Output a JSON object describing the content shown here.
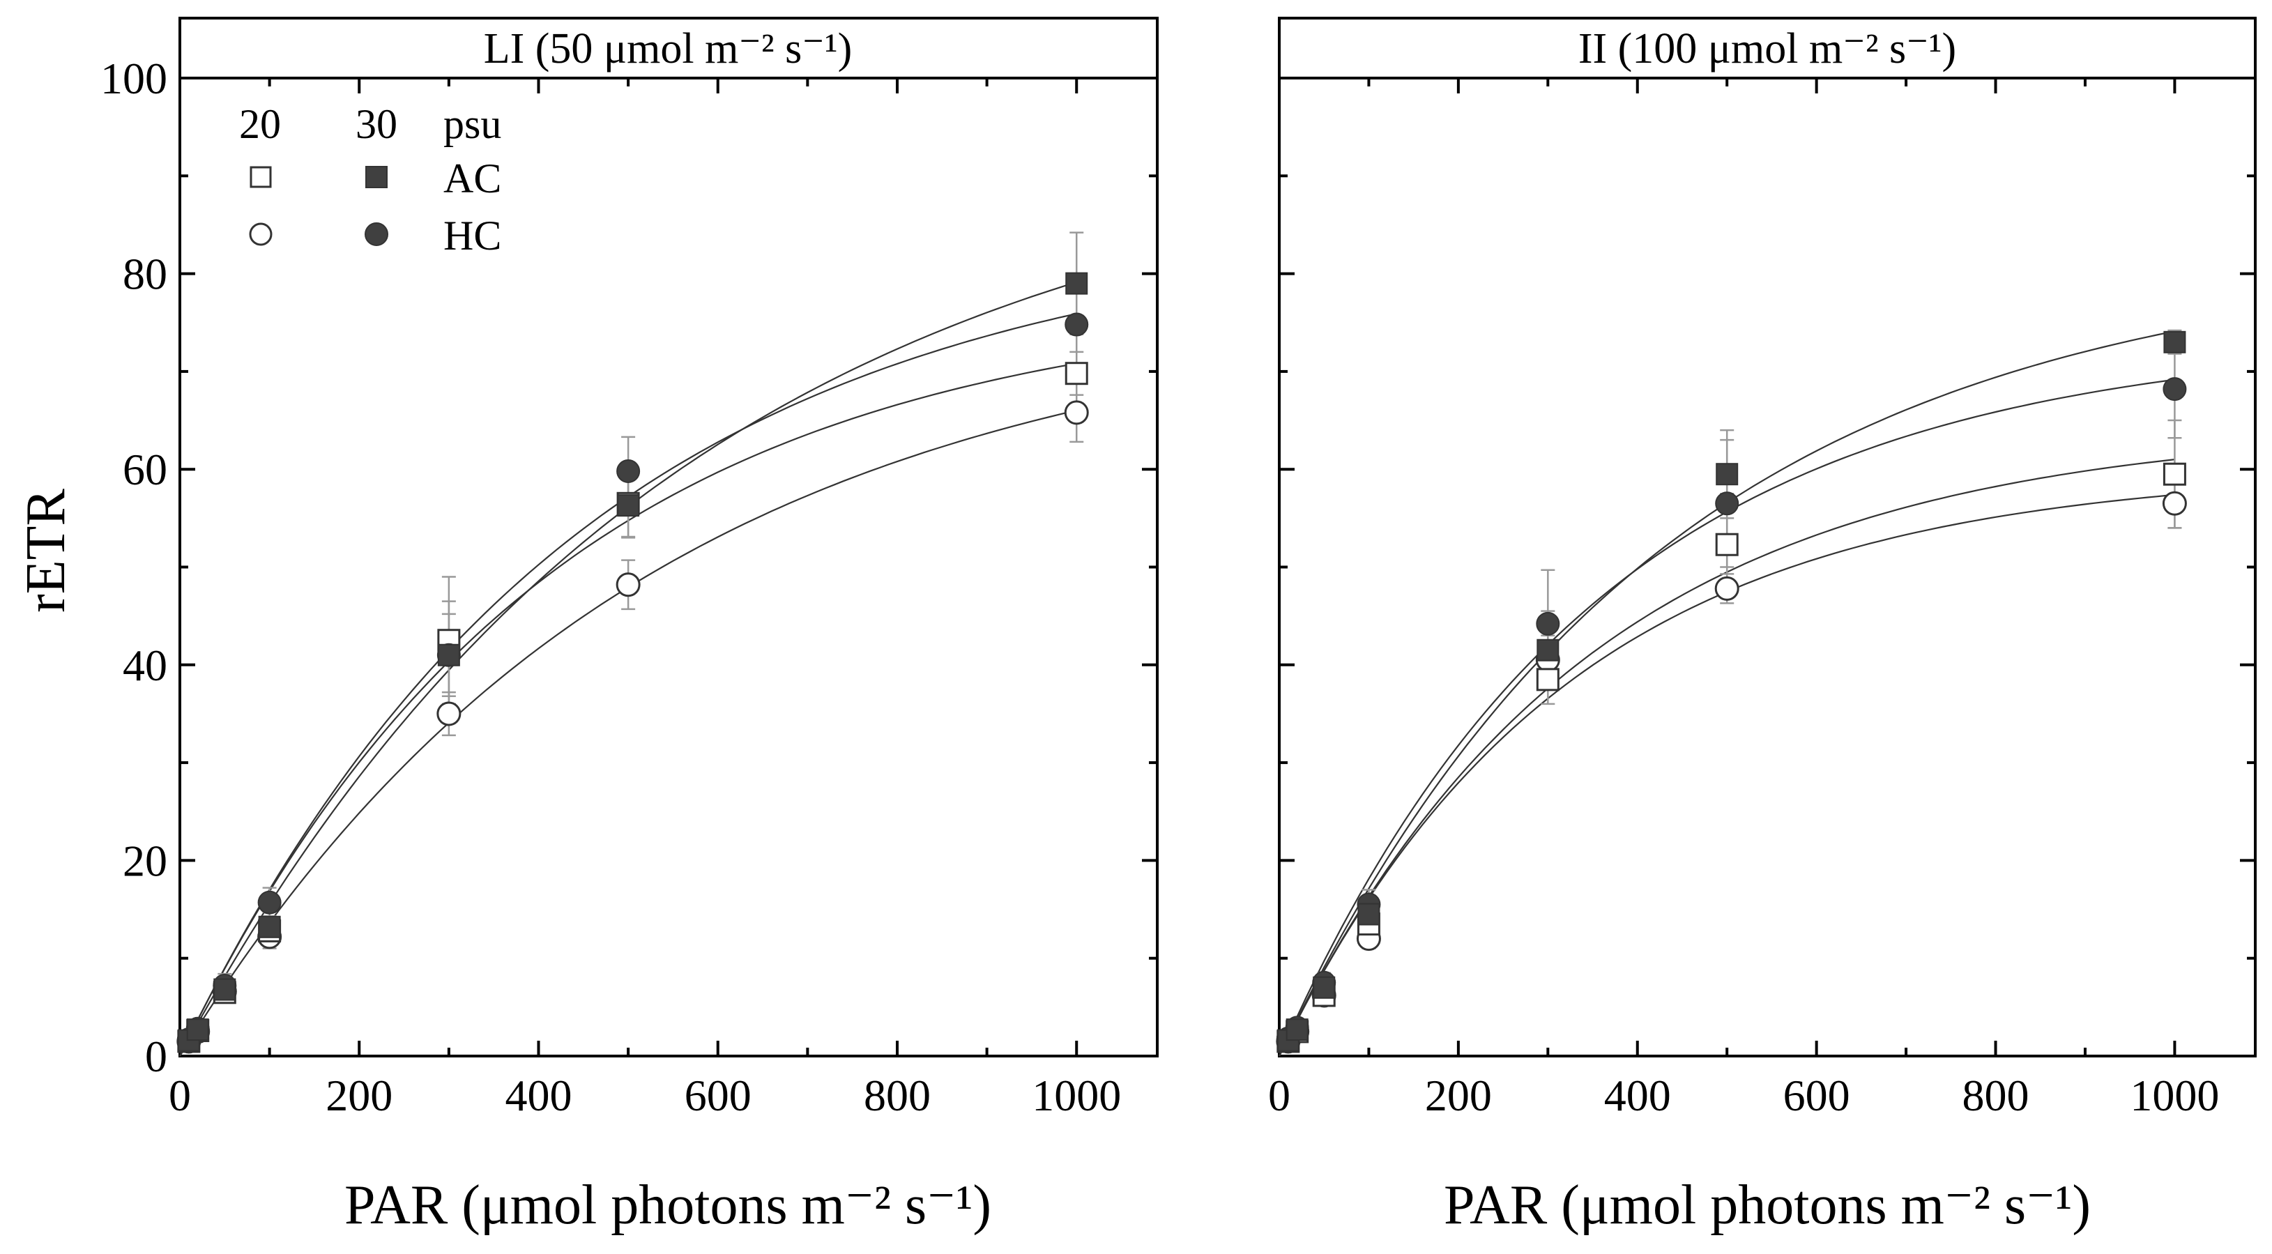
{
  "chart_data": {
    "type": "scatter",
    "ylabel": "rETR",
    "xlabel": "PAR (μmol photons m⁻² s⁻¹)",
    "xlim": [
      0,
      1090
    ],
    "ylim": [
      0,
      100
    ],
    "x_ticks": [
      0,
      200,
      400,
      600,
      800,
      1000
    ],
    "y_ticks": [
      0,
      20,
      40,
      60,
      80,
      100
    ],
    "legend": {
      "position": "top-left",
      "col_headers": [
        "20",
        "30",
        "psu"
      ],
      "rows": [
        "AC",
        "HC"
      ]
    },
    "panels": [
      {
        "title": "LI (50 μmol m⁻² s⁻¹)",
        "x": [
          10,
          20,
          50,
          100,
          300,
          500,
          1000
        ],
        "series": [
          {
            "name": "AC 20 psu",
            "marker": "square",
            "filled": false,
            "values": [
              1.5,
              2.6,
              6.5,
              12.8,
              42.5,
              56.5,
              69.8
            ],
            "errors": [
              0.5,
              0.6,
              1.0,
              1.5,
              6.5,
              3.5,
              2.2
            ]
          },
          {
            "name": "AC 30 psu",
            "marker": "square",
            "filled": true,
            "values": [
              1.6,
              2.7,
              6.8,
              13.2,
              41.0,
              56.3,
              79.0
            ],
            "errors": [
              0.5,
              0.6,
              1.2,
              1.5,
              5.5,
              3.2,
              5.2
            ]
          },
          {
            "name": "HC 20 psu",
            "marker": "circle",
            "filled": false,
            "values": [
              1.5,
              2.5,
              6.6,
              12.2,
              35.0,
              48.2,
              65.8
            ],
            "errors": [
              0.5,
              0.6,
              1.0,
              1.2,
              2.2,
              2.5,
              3.0
            ]
          },
          {
            "name": "HC 30 psu",
            "marker": "circle",
            "filled": true,
            "values": [
              1.7,
              2.8,
              7.2,
              15.7,
              41.0,
              59.8,
              74.8
            ],
            "errors": [
              0.5,
              0.6,
              1.2,
              1.5,
              4.2,
              3.5,
              4.0
            ]
          }
        ]
      },
      {
        "title": "II (100 μmol m⁻² s⁻¹)",
        "x": [
          10,
          20,
          50,
          100,
          300,
          500,
          1000
        ],
        "series": [
          {
            "name": "AC 20 psu",
            "marker": "square",
            "filled": false,
            "values": [
              1.5,
              2.5,
              6.2,
              13.5,
              38.5,
              52.3,
              59.5
            ],
            "errors": [
              0.5,
              0.6,
              1.0,
              1.5,
              2.5,
              5.2,
              5.5
            ]
          },
          {
            "name": "AC 30 psu",
            "marker": "square",
            "filled": true,
            "values": [
              1.6,
              2.7,
              7.0,
              14.5,
              41.5,
              59.5,
              73.0
            ],
            "errors": [
              0.5,
              0.6,
              1.0,
              1.5,
              4.0,
              4.5,
              1.2
            ]
          },
          {
            "name": "HC 20 psu",
            "marker": "circle",
            "filled": false,
            "values": [
              1.5,
              2.5,
              6.2,
              12.0,
              40.5,
              47.8,
              56.5
            ],
            "errors": [
              0.5,
              0.6,
              1.0,
              1.0,
              2.5,
              1.5,
              2.5
            ]
          },
          {
            "name": "HC 30 psu",
            "marker": "circle",
            "filled": true,
            "values": [
              1.8,
              2.9,
              7.5,
              15.5,
              44.2,
              56.5,
              68.2
            ],
            "errors": [
              0.5,
              0.6,
              1.0,
              1.5,
              5.5,
              6.5,
              5.0
            ]
          }
        ]
      }
    ]
  }
}
